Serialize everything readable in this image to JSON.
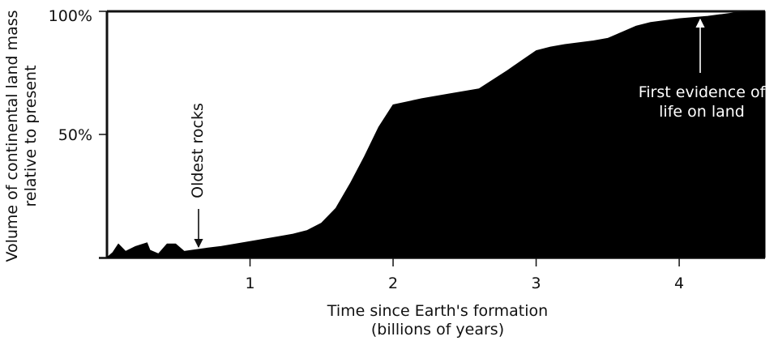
{
  "chart_data": {
    "type": "area",
    "xlabel_lines": [
      "Time since Earth's formation",
      "(billions of years)"
    ],
    "ylabel_lines": [
      "Volume of continental land mass",
      "relative to present"
    ],
    "xlim": [
      0,
      4.6
    ],
    "ylim": [
      0,
      100
    ],
    "x_ticks": [
      1,
      2,
      3,
      4
    ],
    "x_tick_labels": [
      "1",
      "2",
      "3",
      "4"
    ],
    "y_ticks": [
      50,
      100
    ],
    "y_tick_labels": [
      "50%",
      "100%"
    ],
    "grid": false,
    "series": [
      {
        "color": "#000000",
        "x": [
          0,
          0.04,
          0.08,
          0.13,
          0.2,
          0.28,
          0.3,
          0.36,
          0.42,
          0.48,
          0.54,
          0.6,
          0.7,
          0.8,
          0.9,
          1.0,
          1.1,
          1.2,
          1.3,
          1.4,
          1.5,
          1.6,
          1.7,
          1.8,
          1.9,
          2.0,
          2.2,
          2.4,
          2.6,
          2.8,
          2.9,
          3.0,
          3.1,
          3.2,
          3.4,
          3.5,
          3.6,
          3.7,
          3.8,
          4.0,
          4.2,
          4.4,
          4.6
        ],
        "y": [
          0,
          2,
          5.5,
          2.5,
          4.5,
          6,
          3,
          1.5,
          5.5,
          5.5,
          2.5,
          3,
          3.8,
          4.5,
          5.5,
          6.5,
          7.5,
          8.5,
          9.5,
          11,
          14,
          20,
          30,
          41,
          53,
          62,
          64.5,
          66.5,
          68.5,
          76,
          80,
          84,
          85.5,
          86.5,
          88,
          89,
          91.5,
          94,
          95.5,
          97,
          98,
          99.5,
          100
        ]
      }
    ],
    "annotations": [
      {
        "text": "Oldest rocks",
        "x": 0.6,
        "y": 3
      },
      {
        "text_lines": [
          "First evidence of",
          "life on land"
        ],
        "x": 4.1,
        "y": 97
      }
    ]
  }
}
